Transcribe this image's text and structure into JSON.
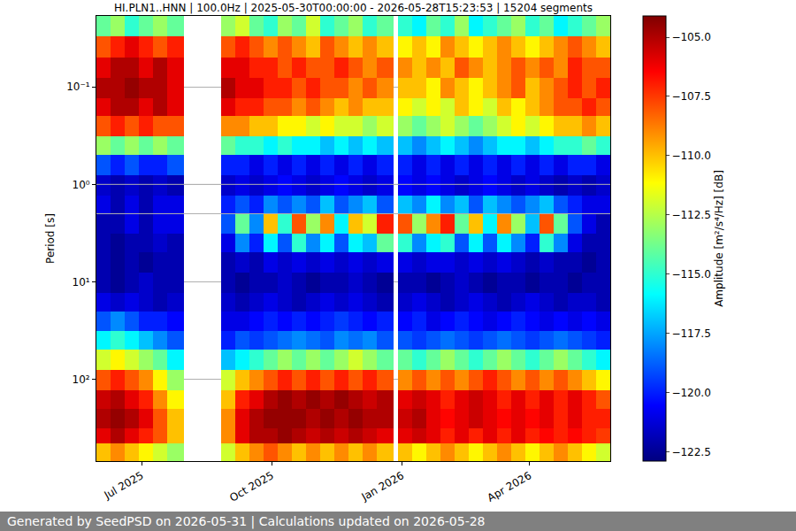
{
  "chart_data": {
    "type": "heatmap",
    "title": "HI.PLN1..HNN | 100.0Hz | 2025-05-30T00:00:00 - 2026-05-28T15:23:53 | 15204 segments",
    "footer": "Generated by SeedPSD on 2026-05-31 | Calculations updated on 2026-05-28",
    "y_label": "Period [s]",
    "log": "y",
    "grid": true,
    "xlim": [
      "2025-05-30",
      "2026-05-28"
    ],
    "xticks": [
      {
        "value": "2025-07-01",
        "label": "Jul 2025"
      },
      {
        "value": "2025-10-01",
        "label": "Oct 2025"
      },
      {
        "value": "2026-01-01",
        "label": "Jan 2026"
      },
      {
        "value": "2026-04-01",
        "label": "Apr 2026"
      }
    ],
    "ylim": [
      0.0187,
      690
    ],
    "yticks": [
      {
        "value": 0.1,
        "label": "10⁻¹"
      },
      {
        "value": 1,
        "label": "10⁰"
      },
      {
        "value": 10,
        "label": "10¹"
      },
      {
        "value": 100,
        "label": "10²"
      }
    ],
    "x_edges": [
      "2025-05-30",
      "2025-06-09",
      "2025-06-19",
      "2025-06-29",
      "2025-07-09",
      "2025-07-19",
      "2025-07-31",
      "2025-08-26",
      "2025-09-05",
      "2025-09-15",
      "2025-09-25",
      "2025-10-05",
      "2025-10-15",
      "2025-10-25",
      "2025-11-04",
      "2025-11-14",
      "2025-11-24",
      "2025-12-04",
      "2025-12-14",
      "2025-12-26",
      "2025-12-29",
      "2026-01-08",
      "2026-01-18",
      "2026-01-28",
      "2026-02-07",
      "2026-02-17",
      "2026-02-27",
      "2026-03-09",
      "2026-03-19",
      "2026-03-29",
      "2026-04-08",
      "2026-04-18",
      "2026-04-28",
      "2026-05-08",
      "2026-05-18",
      "2026-05-28"
    ],
    "y_edges": [
      0.0187,
      0.03,
      0.05,
      0.08,
      0.13,
      0.2,
      0.32,
      0.5,
      0.8,
      1.3,
      2,
      3.2,
      5,
      8,
      13,
      20,
      32,
      50,
      80,
      130,
      200,
      320,
      450,
      690
    ],
    "cells": [
      [
        -114,
        -113,
        -115,
        -114,
        -113,
        -114,
        null,
        -113,
        -112,
        -114,
        -115,
        -113,
        -114,
        -112,
        -115,
        -114,
        -113,
        -115,
        -114,
        null,
        -115,
        -116,
        -114,
        -115,
        -113,
        -116,
        -115,
        -114,
        -113,
        -115,
        -114,
        -116,
        -115,
        -114,
        -113
      ],
      [
        -108,
        -107,
        -106,
        -107,
        -108,
        -107,
        null,
        -108,
        -107,
        -108,
        -109,
        -108,
        -109,
        -110,
        -108,
        -109,
        -110,
        -109,
        -110,
        null,
        -111,
        -110,
        -111,
        -109,
        -110,
        -111,
        -110,
        -109,
        -110,
        -111,
        -110,
        -109,
        -108,
        -109,
        -110
      ],
      [
        -106,
        -105,
        -105,
        -106,
        -105,
        -106,
        null,
        -106,
        -106,
        -107,
        -107,
        -108,
        -107,
        -108,
        -108,
        -107,
        -108,
        -109,
        -108,
        null,
        -109,
        -110,
        -109,
        -110,
        -108,
        -109,
        -110,
        -109,
        -108,
        -109,
        -108,
        -109,
        -107,
        -108,
        -108
      ],
      [
        -105,
        -105,
        -104.5,
        -105,
        -105,
        -106,
        null,
        -105,
        -106,
        -106,
        -107,
        -107,
        -108,
        -107,
        -108,
        -108,
        -109,
        -108,
        -109,
        null,
        -110,
        -110,
        -111,
        -109,
        -110,
        -111,
        -110,
        -109,
        -108,
        -110,
        -109,
        -108,
        -107,
        -108,
        -107
      ],
      [
        -106,
        -105,
        -105,
        -106,
        -105,
        -106,
        null,
        -106,
        -107,
        -107,
        -108,
        -108,
        -109,
        -108,
        -109,
        -110,
        -109,
        -110,
        -110,
        null,
        -111,
        -112,
        -111,
        -112,
        -110,
        -111,
        -112,
        -110,
        -111,
        -110,
        -109,
        -108,
        -108,
        -107,
        -108
      ],
      [
        -108,
        -107,
        -108,
        -107,
        -108,
        -108,
        null,
        -109,
        -109,
        -110,
        -110,
        -111,
        -111,
        -112,
        -111,
        -112,
        -112,
        -113,
        -112,
        null,
        -113,
        -114,
        -113,
        -112,
        -113,
        -114,
        -113,
        -112,
        -111,
        -112,
        -111,
        -110,
        -110,
        -109,
        -110
      ],
      [
        -113,
        -114,
        -113,
        -114,
        -113,
        -114,
        null,
        -114,
        -115,
        -115,
        -116,
        -115,
        -116,
        -116,
        -117,
        -116,
        -117,
        -116,
        -117,
        null,
        -117,
        -118,
        -117,
        -116,
        -117,
        -118,
        -117,
        -116,
        -116,
        -117,
        -116,
        -115,
        -115,
        -114,
        -115
      ],
      [
        -119,
        -120,
        -119,
        -120,
        -120,
        -119,
        null,
        -120,
        -120,
        -121,
        -120,
        -121,
        -120,
        -121,
        -120,
        -121,
        -120,
        -121,
        -120,
        null,
        -120,
        -121,
        -120,
        -121,
        -120,
        -121,
        -120,
        -121,
        -120,
        -121,
        -120,
        -121,
        -120,
        -120,
        -121
      ],
      [
        -121.5,
        -122,
        -121.5,
        -122,
        -121.5,
        -122,
        null,
        -121.5,
        -121,
        -121.5,
        -121,
        -120.5,
        -121,
        -121.5,
        -121,
        -120.5,
        -121,
        -121.5,
        -121,
        null,
        -120.5,
        -121,
        -120.5,
        -121,
        -121.5,
        -121,
        -120.5,
        -121,
        -121.5,
        -121,
        -121.5,
        -122,
        -121.5,
        -122,
        -121.5
      ],
      [
        -121,
        -122,
        -121,
        -122,
        -121,
        -121,
        null,
        -120,
        -119,
        -120,
        -118,
        -119,
        -118,
        -119,
        -117,
        -119,
        -118,
        -117,
        -119,
        null,
        -117,
        -118,
        -116,
        -118,
        -117,
        -119,
        -117,
        -118,
        -119,
        -118,
        -117,
        -119,
        -120,
        -121,
        -121
      ],
      [
        -122,
        -122,
        -121,
        -122,
        -121,
        -121,
        null,
        -119,
        -114,
        -118,
        -110,
        -115,
        -108,
        -113,
        -109,
        -116,
        -110,
        -112,
        -107,
        null,
        -108,
        -113,
        -109,
        -107,
        -114,
        -110,
        -116,
        -109,
        -113,
        -117,
        -108,
        -114,
        -119,
        -121,
        -122
      ],
      [
        -122,
        -122.5,
        -122,
        -122,
        -121.5,
        -122,
        null,
        -121,
        -118,
        -120,
        -116,
        -119,
        -115,
        -118,
        -116,
        -119,
        -116,
        -117,
        -114,
        null,
        -115,
        -118,
        -116,
        -115,
        -119,
        -116,
        -119,
        -116,
        -118,
        -120,
        -115,
        -118,
        -121,
        -122,
        -122
      ],
      [
        -122,
        -122.5,
        -122,
        -122.5,
        -122,
        -122,
        null,
        -122,
        -121.5,
        -122,
        -121,
        -121.5,
        -121,
        -121.5,
        -121,
        -121.5,
        -121,
        -121.5,
        -121,
        null,
        -121,
        -121.5,
        -121,
        -121,
        -121.5,
        -121,
        -121.5,
        -121,
        -121.5,
        -122,
        -121.5,
        -122,
        -122,
        -122.5,
        -122
      ],
      [
        -122,
        -122.5,
        -122,
        -121.5,
        -122,
        -122,
        null,
        -122,
        -122.5,
        -122,
        -122,
        -121.5,
        -122,
        -122.5,
        -122,
        -122,
        -121.5,
        -122,
        -122.5,
        null,
        -122,
        -122,
        -122.5,
        -122,
        -121.5,
        -122,
        -122.5,
        -122,
        -122,
        -122.5,
        -122,
        -122,
        -122.5,
        -122,
        -122
      ],
      [
        -121,
        -121.5,
        -121,
        -121.5,
        -122,
        -121.5,
        null,
        -121.5,
        -122,
        -121.5,
        -121,
        -121.5,
        -122,
        -121.5,
        -121,
        -121.5,
        -121,
        -121.5,
        -122,
        null,
        -121.5,
        -121,
        -121.5,
        -122,
        -121.5,
        -121,
        -121.5,
        -122,
        -121.5,
        -121,
        -121.5,
        -122,
        -121.5,
        -121.5,
        -122
      ],
      [
        -119,
        -118,
        -119,
        -120,
        -120,
        -120.5,
        null,
        -121,
        -121,
        -120.5,
        -120,
        -120.5,
        -120,
        -120.5,
        -120,
        -119.5,
        -120,
        -120.5,
        -120,
        null,
        -120.5,
        -120,
        -121,
        -120.5,
        -120,
        -120.5,
        -121,
        -120.5,
        -120,
        -120.5,
        -121,
        -120.5,
        -121,
        -120.5,
        -121
      ],
      [
        -116,
        -115,
        -116,
        -117,
        -118,
        -119,
        null,
        -120,
        -119,
        -119.5,
        -119,
        -118.5,
        -118,
        -118.5,
        -119,
        -118,
        -118.5,
        -118,
        -119,
        null,
        -119,
        -119.5,
        -119,
        -118.5,
        -119,
        -119.5,
        -119,
        -118.5,
        -119,
        -119.5,
        -119,
        -118.5,
        -119,
        -119.5,
        -120
      ],
      [
        -112,
        -111,
        -112,
        -113,
        -114,
        -116,
        null,
        -117,
        -116,
        -115,
        -114,
        -113,
        -114,
        -113,
        -114,
        -113,
        -112,
        -113,
        -114,
        null,
        -114,
        -115,
        -114,
        -113,
        -114,
        -115,
        -114,
        -113,
        -114,
        -115,
        -114,
        -113,
        -114,
        -115,
        -116
      ],
      [
        -108,
        -107,
        -108,
        -109,
        -111,
        -113,
        null,
        -112,
        -110,
        -109,
        -108,
        -107,
        -108,
        -107,
        -108,
        -107,
        -108,
        -107,
        -108,
        null,
        -109,
        -108,
        -109,
        -108,
        -109,
        -108,
        -107,
        -108,
        -109,
        -108,
        -109,
        -108,
        -109,
        -110,
        -111
      ],
      [
        -105.5,
        -105,
        -106,
        -107,
        -109,
        -111,
        null,
        -110,
        -107,
        -106,
        -105,
        -104.5,
        -105,
        -104.5,
        -105,
        -104.5,
        -105,
        -105.5,
        -105,
        null,
        -106,
        -105.5,
        -106,
        -107,
        -106,
        -105.5,
        -106,
        -107,
        -106,
        -107,
        -106,
        -107,
        -106,
        -107,
        -108
      ],
      [
        -105,
        -104.5,
        -105,
        -106,
        -108,
        -110,
        null,
        -109,
        -106,
        -105,
        -104.5,
        -104.5,
        -104.5,
        -105,
        -104.5,
        -105,
        -104.5,
        -105,
        -105,
        null,
        -105.5,
        -105,
        -106,
        -106.5,
        -106,
        -105.5,
        -106,
        -106.5,
        -106,
        -106.5,
        -106,
        -107,
        -106,
        -107,
        -107
      ],
      [
        -106,
        -105,
        -106,
        -107,
        -108,
        -110,
        null,
        -109,
        -106,
        -105,
        -105,
        -104.5,
        -105,
        -105.5,
        -105,
        -105.5,
        -105,
        -105.5,
        -106,
        null,
        -106,
        -105.5,
        -106,
        -107,
        -106,
        -107,
        -106,
        -107,
        -106,
        -107,
        -106.5,
        -107,
        -106.5,
        -107,
        -107.5
      ],
      [
        -110,
        -109,
        -110,
        -111,
        -112,
        -113,
        null,
        -112,
        -110,
        -109,
        -108,
        -109,
        -110,
        -109,
        -110,
        -109,
        -110,
        -109,
        -110,
        null,
        -110,
        -111,
        -110,
        -109,
        -110,
        -111,
        -110,
        -109,
        -110,
        -111,
        -110,
        -109,
        -110,
        -111,
        -112
      ]
    ],
    "colorbar": {
      "label": "Amplitude [m²/s⁴/Hz] [dB]",
      "range": [
        -122.9,
        -104.1
      ],
      "ticks": [
        {
          "value": -105,
          "label": "−105.0"
        },
        {
          "value": -107.5,
          "label": "−107.5"
        },
        {
          "value": -110,
          "label": "−110.0"
        },
        {
          "value": -112.5,
          "label": "−112.5"
        },
        {
          "value": -115,
          "label": "−115.0"
        },
        {
          "value": -117.5,
          "label": "−117.5"
        },
        {
          "value": -120,
          "label": "−120.0"
        },
        {
          "value": -122.5,
          "label": "−122.5"
        }
      ]
    }
  }
}
